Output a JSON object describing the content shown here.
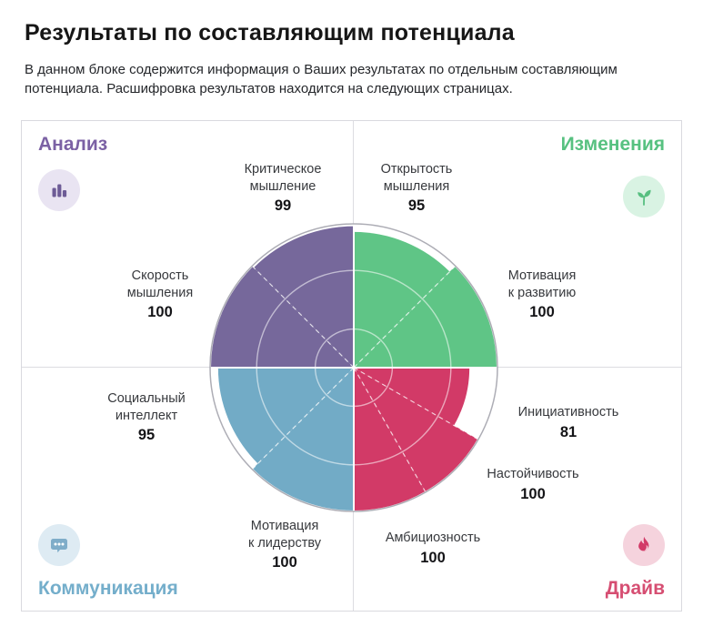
{
  "page": {
    "title": "Результаты по составляющим потенциала",
    "subtitle": "В данном блоке содержится информация о Ваших результатах по отдельным составляющим потенциала. Расшифровка результатов находится на следующих страницах."
  },
  "quadrants": [
    {
      "name": "Анализ",
      "color": "#7B61A4",
      "icon": "bar-chart-icon",
      "badge_bg": "#E9E4F2"
    },
    {
      "name": "Изменения",
      "color": "#57C180",
      "icon": "sprout-icon",
      "badge_bg": "#D9F3E3"
    },
    {
      "name": "Коммуникация",
      "color": "#74AECB",
      "icon": "chat-bubble-icon",
      "badge_bg": "#DEEBF3"
    },
    {
      "name": "Драйв",
      "color": "#D64E72",
      "icon": "flame-icon",
      "badge_bg": "#F5D3DD"
    }
  ],
  "chart_data": {
    "type": "polar-sector",
    "scale_max": 100,
    "rings_pct": [
      27,
      68
    ],
    "outer_ring_color": "#ADADB5",
    "divider_dashed_deg": [
      45,
      135,
      225,
      300,
      330
    ],
    "sectors": [
      {
        "label": "Критическое мышление",
        "lines": [
          "Критическое",
          "мышление"
        ],
        "value": 99,
        "start_deg": 90,
        "end_deg": 135,
        "color": "#76689B",
        "group": "Анализ"
      },
      {
        "label": "Скорость мышления",
        "lines": [
          "Скорость",
          "мышления"
        ],
        "value": 100,
        "start_deg": 135,
        "end_deg": 180,
        "color": "#76689B",
        "group": "Анализ"
      },
      {
        "label": "Открытость мышления",
        "lines": [
          "Открытость",
          "мышления"
        ],
        "value": 95,
        "start_deg": 45,
        "end_deg": 90,
        "color": "#5FC586",
        "group": "Изменения"
      },
      {
        "label": "Мотивация к развитию",
        "lines": [
          "Мотивация",
          "к развитию"
        ],
        "value": 100,
        "start_deg": 0,
        "end_deg": 45,
        "color": "#5FC586",
        "group": "Изменения"
      },
      {
        "label": "Социальный интеллект",
        "lines": [
          "Социальный",
          "интеллект"
        ],
        "value": 95,
        "start_deg": 180,
        "end_deg": 225,
        "color": "#72ABC6",
        "group": "Коммуникация"
      },
      {
        "label": "Мотивация к лидерству",
        "lines": [
          "Мотивация",
          "к лидерству"
        ],
        "value": 100,
        "start_deg": 225,
        "end_deg": 270,
        "color": "#72ABC6",
        "group": "Коммуникация"
      },
      {
        "label": "Амбициозность",
        "lines": [
          "Амбициозность"
        ],
        "value": 100,
        "start_deg": 270,
        "end_deg": 300,
        "color": "#D23A67",
        "group": "Драйв"
      },
      {
        "label": "Настойчивость",
        "lines": [
          "Настойчивость"
        ],
        "value": 100,
        "start_deg": 300,
        "end_deg": 330,
        "color": "#D23A67",
        "group": "Драйв"
      },
      {
        "label": "Инициативность",
        "lines": [
          "Инициативность"
        ],
        "value": 81,
        "start_deg": 330,
        "end_deg": 360,
        "color": "#D23A67",
        "group": "Драйв"
      }
    ]
  }
}
